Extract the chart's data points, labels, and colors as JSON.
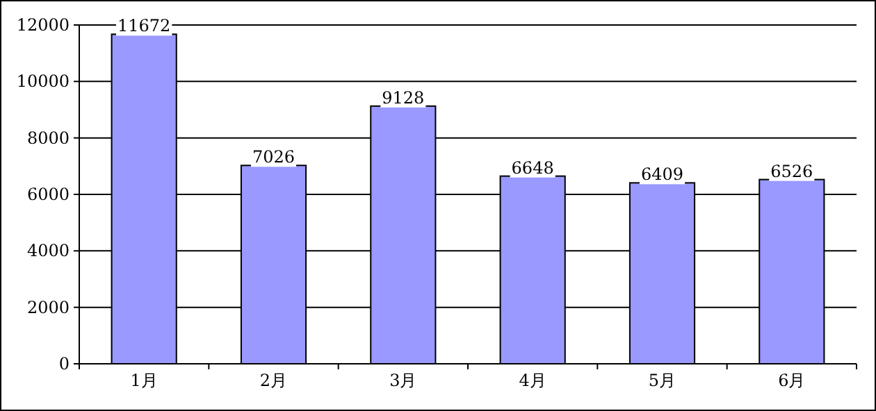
{
  "chart_data": {
    "type": "bar",
    "categories": [
      "1月",
      "2月",
      "3月",
      "4月",
      "5月",
      "6月"
    ],
    "values": [
      11672,
      7026,
      9128,
      6648,
      6409,
      6526
    ],
    "color": "#9999ff",
    "ylim": [
      0,
      12000
    ],
    "yticks": [
      0,
      2000,
      4000,
      6000,
      8000,
      10000,
      12000
    ],
    "grid": "y",
    "data_labels": true
  }
}
